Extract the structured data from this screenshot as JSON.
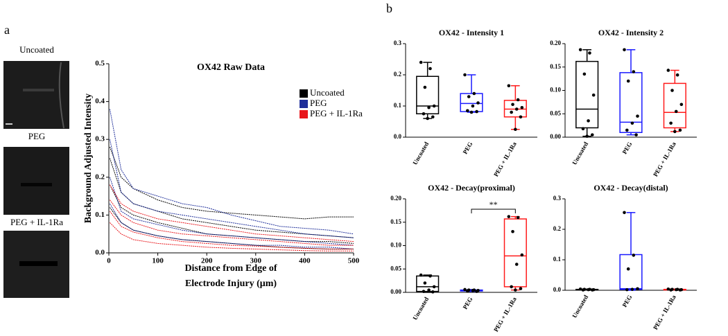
{
  "panel_labels": [
    "a",
    "b"
  ],
  "images": [
    {
      "label": "Uncoated"
    },
    {
      "label": "PEG"
    },
    {
      "label": "PEG + IL-1Ra"
    }
  ],
  "chart_data": [
    {
      "type": "line",
      "title": "OX42 Raw Data",
      "x_label": [
        "Distance from Edge of",
        "Electrode Injury (μm)"
      ],
      "y_label": "Background Adjusted Intensity",
      "x": [
        2,
        25,
        50,
        100,
        150,
        200,
        250,
        300,
        350,
        400,
        450,
        500
      ],
      "xlim": [
        0,
        500
      ],
      "xticks": [
        0,
        100,
        200,
        300,
        400,
        500
      ],
      "ylim": [
        0,
        0.5
      ],
      "yticks": [
        {
          "value": 0,
          "label": "0.0"
        },
        0.1,
        0.2,
        0.3,
        0.4,
        0.5
      ],
      "series": [
        {
          "name": "Uncoated",
          "color": "#000000",
          "traces": [
            [
              0.28,
              0.2,
              0.17,
              0.14,
              0.12,
              0.11,
              0.105,
              0.1,
              0.095,
              0.09,
              0.095,
              0.095
            ],
            [
              0.25,
              0.16,
              0.13,
              0.11,
              0.09,
              0.08,
              0.07,
              0.06,
              0.055,
              0.05,
              0.045,
              0.04
            ],
            [
              0.18,
              0.12,
              0.1,
              0.08,
              0.065,
              0.05,
              0.045,
              0.04,
              0.035,
              0.03,
              0.03,
              0.025
            ],
            [
              0.12,
              0.08,
              0.06,
              0.045,
              0.035,
              0.03,
              0.025,
              0.02,
              0.015,
              0.012,
              0.01,
              0.01
            ]
          ]
        },
        {
          "name": "PEG",
          "color": "#1f2f9a",
          "traces": [
            [
              0.38,
              0.22,
              0.17,
              0.15,
              0.13,
              0.12,
              0.1,
              0.085,
              0.07,
              0.065,
              0.06,
              0.05
            ],
            [
              0.3,
              0.16,
              0.13,
              0.11,
              0.1,
              0.09,
              0.08,
              0.07,
              0.06,
              0.05,
              0.045,
              0.04
            ],
            [
              0.2,
              0.11,
              0.09,
              0.075,
              0.06,
              0.05,
              0.045,
              0.04,
              0.035,
              0.03,
              0.025,
              0.02
            ],
            [
              0.13,
              0.08,
              0.06,
              0.045,
              0.035,
              0.03,
              0.025,
              0.02,
              0.02,
              0.015,
              0.015,
              0.01
            ]
          ]
        },
        {
          "name": "PEG + IL-1Ra",
          "color": "#e8161b",
          "traces": [
            [
              0.18,
              0.13,
              0.11,
              0.09,
              0.08,
              0.07,
              0.06,
              0.05,
              0.045,
              0.04,
              0.035,
              0.03
            ],
            [
              0.14,
              0.1,
              0.08,
              0.06,
              0.05,
              0.045,
              0.04,
              0.035,
              0.03,
              0.025,
              0.02,
              0.02
            ],
            [
              0.11,
              0.07,
              0.055,
              0.04,
              0.03,
              0.025,
              0.02,
              0.018,
              0.015,
              0.012,
              0.01,
              0.01
            ],
            [
              0.08,
              0.05,
              0.035,
              0.025,
              0.02,
              0.015,
              0.012,
              0.01,
              0.008,
              0.006,
              0.005,
              0.005
            ]
          ]
        }
      ]
    },
    {
      "type": "box",
      "title": "OX42 - Intensity 1",
      "categories": [
        "Uncoated",
        "PEG",
        "PEG + IL-1Ra"
      ],
      "ylim": [
        0,
        0.3
      ],
      "yticks": [
        {
          "value": 0,
          "label": "0.0"
        },
        0.1,
        0.2,
        0.3
      ],
      "boxes": [
        {
          "color": "#000000",
          "min": 0.06,
          "q1": 0.075,
          "median": 0.1,
          "q3": 0.195,
          "max": 0.24,
          "points": [
            0.24,
            0.22,
            0.16,
            0.1,
            0.095,
            0.075,
            0.065,
            0.06
          ]
        },
        {
          "color": "#1a1aff",
          "min": 0.08,
          "q1": 0.082,
          "median": 0.108,
          "q3": 0.14,
          "max": 0.2,
          "points": [
            0.2,
            0.14,
            0.13,
            0.11,
            0.1,
            0.085,
            0.082,
            0.08
          ]
        },
        {
          "color": "#ff1a1a",
          "min": 0.025,
          "q1": 0.065,
          "median": 0.09,
          "q3": 0.118,
          "max": 0.165,
          "points": [
            0.165,
            0.12,
            0.105,
            0.095,
            0.09,
            0.08,
            0.065,
            0.025
          ]
        }
      ]
    },
    {
      "type": "box",
      "title": "OX42 - Intensity 2",
      "categories": [
        "Uncoated",
        "PEG",
        "PEG + IL-1Ra"
      ],
      "ylim": [
        0,
        0.2
      ],
      "yticks": [
        {
          "value": 0,
          "label": "0.00"
        },
        0.05,
        {
          "value": 0.1,
          "label": "0.10"
        },
        0.15,
        {
          "value": 0.2,
          "label": "0.20"
        }
      ],
      "boxes": [
        {
          "color": "#000000",
          "min": 0.002,
          "q1": 0.02,
          "median": 0.06,
          "q3": 0.162,
          "max": 0.187,
          "points": [
            0.187,
            0.18,
            0.135,
            0.09,
            0.035,
            0.018,
            0.005,
            0.002
          ]
        },
        {
          "color": "#1a1aff",
          "min": 0.005,
          "q1": 0.01,
          "median": 0.032,
          "q3": 0.138,
          "max": 0.187,
          "points": [
            0.187,
            0.14,
            0.12,
            0.045,
            0.03,
            0.015,
            0.005
          ]
        },
        {
          "color": "#ff1a1a",
          "min": 0.012,
          "q1": 0.02,
          "median": 0.053,
          "q3": 0.115,
          "max": 0.143,
          "points": [
            0.143,
            0.133,
            0.1,
            0.07,
            0.055,
            0.03,
            0.015,
            0.012
          ]
        }
      ]
    },
    {
      "type": "box",
      "title": "OX42 - Decay(proximal)",
      "categories": [
        "Uncoated",
        "PEG",
        "PEG + IL-1Ra"
      ],
      "ylim": [
        0,
        0.2
      ],
      "yticks": [
        {
          "value": 0,
          "label": "0.00"
        },
        0.05,
        {
          "value": 0.1,
          "label": "0.10"
        },
        0.15,
        {
          "value": 0.2,
          "label": "0.20"
        }
      ],
      "annotation": "**",
      "boxes": [
        {
          "color": "#000000",
          "min": 0,
          "q1": 0.002,
          "median": 0.012,
          "q3": 0.035,
          "max": 0.037,
          "points": [
            0.037,
            0.035,
            0.02,
            0.012,
            0.005,
            0.002,
            0.001
          ]
        },
        {
          "color": "#1a1aff",
          "min": 0.002,
          "q1": 0.003,
          "median": 0.004,
          "q3": 0.005,
          "max": 0.006,
          "points": [
            0.006,
            0.005,
            0.005,
            0.004,
            0.004,
            0.003,
            0.002
          ]
        },
        {
          "color": "#ff1a1a",
          "min": 0.005,
          "q1": 0.012,
          "median": 0.078,
          "q3": 0.157,
          "max": 0.162,
          "points": [
            0.162,
            0.16,
            0.13,
            0.08,
            0.06,
            0.012,
            0.008,
            0.005
          ]
        }
      ]
    },
    {
      "type": "box",
      "title": "OX42 - Decay(distal)",
      "categories": [
        "Uncoated",
        "PEG",
        "PEG + IL-1Ra"
      ],
      "ylim": [
        0,
        0.3
      ],
      "yticks": [
        {
          "value": 0,
          "label": "0.0"
        },
        0.1,
        0.2,
        0.3
      ],
      "boxes": [
        {
          "color": "#000000",
          "min": 0.001,
          "q1": 0.001,
          "median": 0.002,
          "q3": 0.003,
          "max": 0.004,
          "points": [
            0.004,
            0.003,
            0.003,
            0.002,
            0.002,
            0.001,
            0.001
          ]
        },
        {
          "color": "#1a1aff",
          "min": 0,
          "q1": 0.003,
          "median": 0.005,
          "q3": 0.117,
          "max": 0.255,
          "points": [
            0.255,
            0.115,
            0.07,
            0.005,
            0.003,
            0.002
          ]
        },
        {
          "color": "#ff1a1a",
          "min": 0.001,
          "q1": 0.001,
          "median": 0.002,
          "q3": 0.003,
          "max": 0.004,
          "points": [
            0.004,
            0.003,
            0.003,
            0.002,
            0.002,
            0.001,
            0.001
          ]
        }
      ]
    }
  ]
}
